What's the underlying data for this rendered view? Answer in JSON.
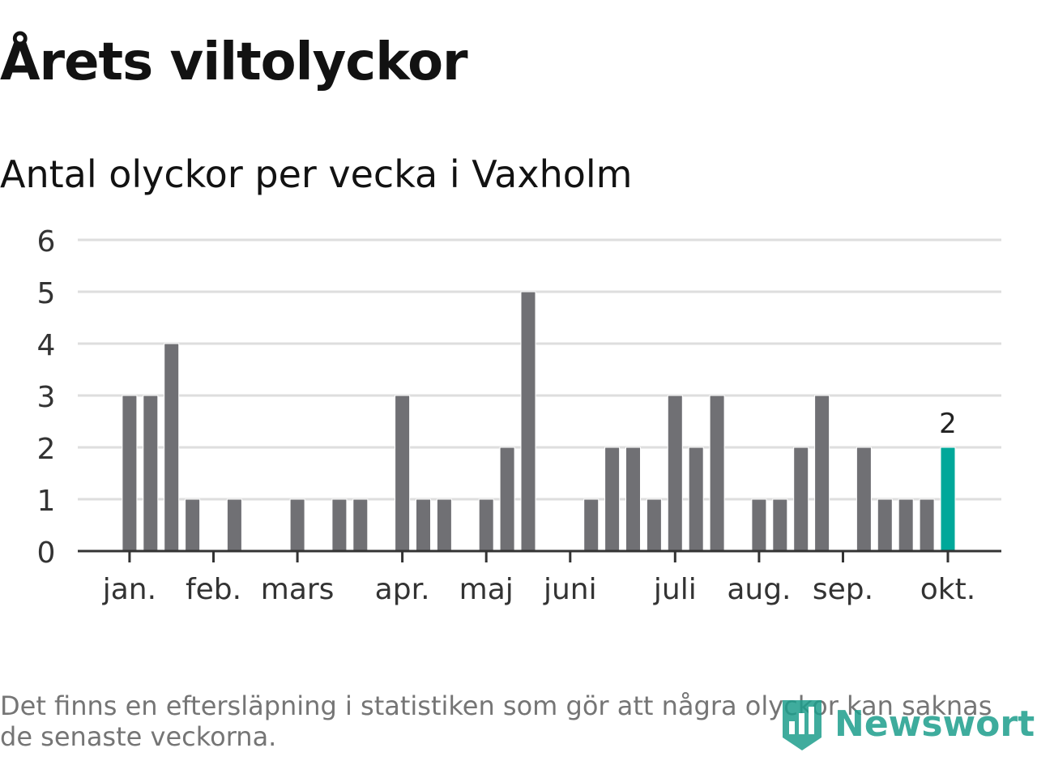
{
  "chart_data": {
    "type": "bar",
    "title": "Årets viltolyckor",
    "subtitle": "Antal olyckor per vecka i Vaxholm",
    "values": [
      0,
      3,
      3,
      4,
      1,
      0,
      1,
      0,
      0,
      1,
      0,
      1,
      1,
      0,
      3,
      1,
      1,
      0,
      1,
      2,
      5,
      0,
      0,
      1,
      2,
      2,
      1,
      3,
      2,
      3,
      0,
      1,
      1,
      2,
      3,
      0,
      2,
      1,
      1,
      1,
      2
    ],
    "highlight_index": 40,
    "highlight_label": "2",
    "ylim": [
      0,
      6
    ],
    "yticks": [
      "0",
      "1",
      "2",
      "3",
      "4",
      "5",
      "6"
    ],
    "month_labels": [
      {
        "label": "jan.",
        "week": 1
      },
      {
        "label": "feb.",
        "week": 5
      },
      {
        "label": "mars",
        "week": 9
      },
      {
        "label": "apr.",
        "week": 14
      },
      {
        "label": "maj",
        "week": 18
      },
      {
        "label": "juni",
        "week": 22
      },
      {
        "label": "juli",
        "week": 27
      },
      {
        "label": "aug.",
        "week": 31
      },
      {
        "label": "sep.",
        "week": 35
      },
      {
        "label": "okt.",
        "week": 40
      }
    ],
    "grid": true,
    "bar_color": "#707074",
    "highlight_color": "#00a89a"
  },
  "footnote": "Det finns en eftersläpning i statistiken som gör att några olyckor kan saknas de senaste veckorna.",
  "logo": {
    "text": "Newsworthy",
    "icon": "bar-chart-shield-icon",
    "color": "#1d9e8c"
  }
}
